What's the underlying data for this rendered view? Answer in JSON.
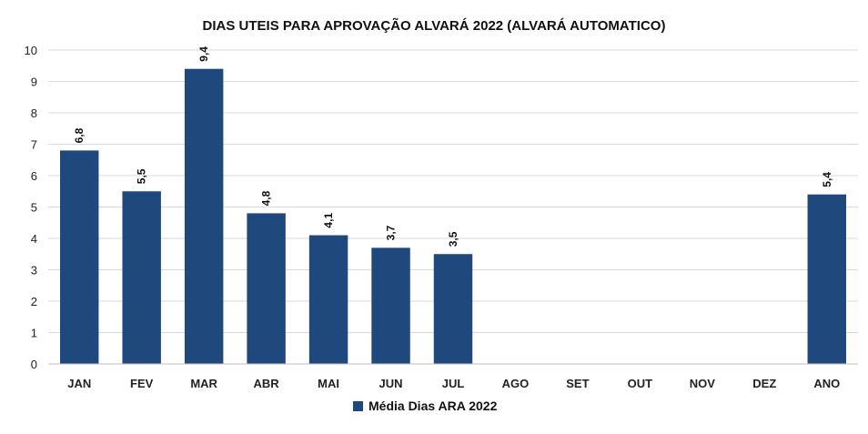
{
  "chart_data": {
    "type": "bar",
    "title": "DIAS UTEIS PARA APROVAÇÃO ALVARÁ 2022 (ALVARÁ AUTOMATICO)",
    "categories": [
      "JAN",
      "FEV",
      "MAR",
      "ABR",
      "MAI",
      "JUN",
      "JUL",
      "AGO",
      "SET",
      "OUT",
      "NOV",
      "DEZ",
      "ANO"
    ],
    "series": [
      {
        "name": "Média Dias ARA 2022",
        "values": [
          6.8,
          5.5,
          9.4,
          4.8,
          4.1,
          3.7,
          3.5,
          null,
          null,
          null,
          null,
          null,
          5.4
        ],
        "data_labels": [
          "6,8",
          "5,5",
          "9,4",
          "4,8",
          "4,1",
          "3,7",
          "3,5",
          "",
          "",
          "",
          "",
          "",
          "5,4"
        ],
        "color": "#1f497d"
      }
    ],
    "ylim": [
      0,
      10
    ],
    "yticks": [
      "0",
      "1",
      "2",
      "3",
      "4",
      "5",
      "6",
      "7",
      "8",
      "9",
      "10"
    ],
    "xlabel": "",
    "ylabel": "",
    "grid": true,
    "legend_position": "bottom"
  }
}
